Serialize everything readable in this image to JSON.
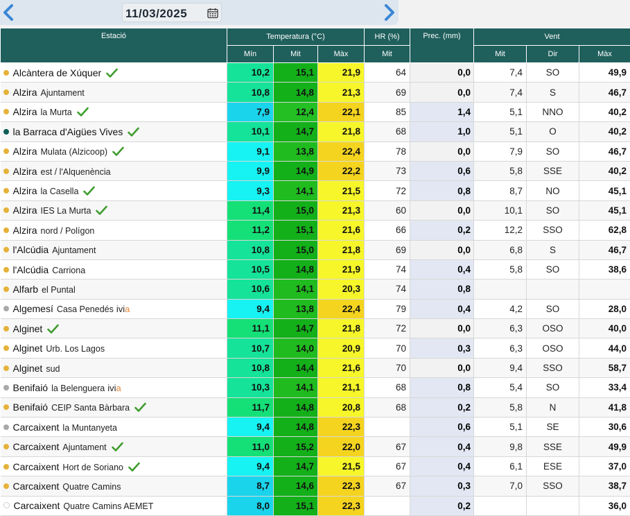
{
  "header": {
    "date": "11/03/2025"
  },
  "icons": {
    "prev": "chevron-left-icon",
    "next": "chevron-right-icon",
    "calendar": "calendar-icon",
    "valid": "checkmark-icon"
  },
  "colors": {
    "header_bg": "#1f5f5c",
    "dot_yellow": "#e5b23a",
    "dot_teal": "#0e5e56",
    "dot_grey": "#a9a9a9",
    "check": "#3e9c2d",
    "prec_bg": "#e2e7f3",
    "prec_zero_bg": "#f2f2f2"
  },
  "columns": {
    "station": "Estació",
    "temp": "Temperatura (°C)",
    "hr": "HR (%)",
    "prec": "Prec. (mm)",
    "wind": "Vent",
    "min": "Mín",
    "mit": "Mit",
    "max": "Màx",
    "hr_mit": "Mit",
    "wind_mit": "Mit",
    "wind_dir": "Dir",
    "wind_max": "Màx"
  },
  "rows": [
    {
      "name": "Alcàntera de Xúquer",
      "sub": "",
      "dot": "yellow",
      "check": true,
      "min": "10,2",
      "mit": "15,1",
      "max": "21,9",
      "hr": "64",
      "prec": "0,0",
      "w_mit": "7,4",
      "w_dir": "SO",
      "w_max": "49,9"
    },
    {
      "name": "Alzira",
      "sub": "Ajuntament",
      "dot": "yellow",
      "check": false,
      "min": "10,8",
      "mit": "14,8",
      "max": "21,3",
      "hr": "69",
      "prec": "0,0",
      "w_mit": "7,4",
      "w_dir": "S",
      "w_max": "46,7"
    },
    {
      "name": "Alzira",
      "sub": "la Murta",
      "dot": "yellow",
      "check": true,
      "min": "7,9",
      "mit": "12,4",
      "max": "22,1",
      "hr": "85",
      "prec": "1,4",
      "w_mit": "5,1",
      "w_dir": "NNO",
      "w_max": "40,2"
    },
    {
      "name": "la Barraca d'Aigües Vives",
      "sub": "",
      "dot": "teal",
      "check": true,
      "min": "10,1",
      "mit": "14,7",
      "max": "21,8",
      "hr": "68",
      "prec": "1,0",
      "w_mit": "5,1",
      "w_dir": "O",
      "w_max": "40,2"
    },
    {
      "name": "Alzira",
      "sub": "Mulata (Alzicoop)",
      "dot": "yellow",
      "check": true,
      "min": "9,1",
      "mit": "13,8",
      "max": "22,4",
      "hr": "78",
      "prec": "0,0",
      "w_mit": "7,9",
      "w_dir": "SO",
      "w_max": "46,7"
    },
    {
      "name": "Alzira",
      "sub": "est / l'Alquenència",
      "dot": "yellow",
      "check": false,
      "min": "9,9",
      "mit": "14,9",
      "max": "22,2",
      "hr": "73",
      "prec": "0,6",
      "w_mit": "5,8",
      "w_dir": "SSE",
      "w_max": "40,2"
    },
    {
      "name": "Alzira",
      "sub": "la Casella",
      "dot": "yellow",
      "check": true,
      "min": "9,3",
      "mit": "14,1",
      "max": "21,5",
      "hr": "72",
      "prec": "0,8",
      "w_mit": "8,7",
      "w_dir": "NO",
      "w_max": "45,1"
    },
    {
      "name": "Alzira",
      "sub": "IES La Murta",
      "dot": "yellow",
      "check": true,
      "min": "11,4",
      "mit": "15,0",
      "max": "21,3",
      "hr": "60",
      "prec": "0,0",
      "w_mit": "10,1",
      "w_dir": "SO",
      "w_max": "45,1"
    },
    {
      "name": "Alzira",
      "sub": "nord / Polígon",
      "dot": "yellow",
      "check": false,
      "min": "11,2",
      "mit": "15,1",
      "max": "21,6",
      "hr": "66",
      "prec": "0,2",
      "w_mit": "12,2",
      "w_dir": "SSO",
      "w_max": "62,8"
    },
    {
      "name": "l'Alcúdia",
      "sub": "Ajuntament",
      "dot": "yellow",
      "check": false,
      "min": "10,8",
      "mit": "15,0",
      "max": "21,8",
      "hr": "69",
      "prec": "0,0",
      "w_mit": "6,8",
      "w_dir": "S",
      "w_max": "46,7"
    },
    {
      "name": "l'Alcúdia",
      "sub": "Carriona",
      "dot": "yellow",
      "check": false,
      "min": "10,5",
      "mit": "14,8",
      "max": "21,9",
      "hr": "74",
      "prec": "0,4",
      "w_mit": "5,8",
      "w_dir": "SO",
      "w_max": "38,6"
    },
    {
      "name": "Alfarb",
      "sub": "el Puntal",
      "dot": "yellow",
      "check": false,
      "min": "10,6",
      "mit": "14,1",
      "max": "20,3",
      "hr": "74",
      "prec": "0,8",
      "w_mit": "",
      "w_dir": "",
      "w_max": ""
    },
    {
      "name": "Algemesí",
      "sub": "Casa Penedés",
      "dot": "grey",
      "check": false,
      "ivia": true,
      "min": "9,4",
      "mit": "13,8",
      "max": "22,4",
      "hr": "79",
      "prec": "0,4",
      "w_mit": "4,2",
      "w_dir": "SO",
      "w_max": "28,0"
    },
    {
      "name": "Alginet",
      "sub": "",
      "dot": "yellow",
      "check": true,
      "min": "11,1",
      "mit": "14,7",
      "max": "21,8",
      "hr": "72",
      "prec": "0,0",
      "w_mit": "6,3",
      "w_dir": "OSO",
      "w_max": "40,0"
    },
    {
      "name": "Alginet",
      "sub": "Urb. Los Lagos",
      "dot": "yellow",
      "check": false,
      "min": "10,7",
      "mit": "14,0",
      "max": "20,9",
      "hr": "70",
      "prec": "0,3",
      "w_mit": "6,3",
      "w_dir": "OSO",
      "w_max": "44,0"
    },
    {
      "name": "Alginet",
      "sub": "sud",
      "dot": "yellow",
      "check": false,
      "min": "10,8",
      "mit": "14,4",
      "max": "21,6",
      "hr": "70",
      "prec": "0,0",
      "w_mit": "9,4",
      "w_dir": "SSO",
      "w_max": "58,7"
    },
    {
      "name": "Benifaió",
      "sub": "la Belenguera",
      "dot": "grey",
      "check": false,
      "ivia": true,
      "min": "10,3",
      "mit": "14,1",
      "max": "21,1",
      "hr": "68",
      "prec": "0,8",
      "w_mit": "5,4",
      "w_dir": "SO",
      "w_max": "33,4"
    },
    {
      "name": "Benifaió",
      "sub": "CEIP Santa Bàrbara",
      "dot": "yellow",
      "check": true,
      "min": "11,7",
      "mit": "14,8",
      "max": "20,8",
      "hr": "68",
      "prec": "0,2",
      "w_mit": "5,8",
      "w_dir": "N",
      "w_max": "41,8"
    },
    {
      "name": "Carcaixent",
      "sub": "la Muntanyeta",
      "dot": "grey",
      "check": false,
      "min": "9,4",
      "mit": "14,8",
      "max": "22,3",
      "hr": "",
      "prec": "0,6",
      "w_mit": "5,1",
      "w_dir": "SE",
      "w_max": "30,6"
    },
    {
      "name": "Carcaixent",
      "sub": "Ajuntament",
      "dot": "yellow",
      "check": true,
      "min": "11,0",
      "mit": "15,2",
      "max": "22,0",
      "hr": "67",
      "prec": "0,4",
      "w_mit": "9,8",
      "w_dir": "SSE",
      "w_max": "49,9"
    },
    {
      "name": "Carcaixent",
      "sub": "Hort de Soriano",
      "dot": "yellow",
      "check": true,
      "min": "9,4",
      "mit": "14,7",
      "max": "21,5",
      "hr": "67",
      "prec": "0,4",
      "w_mit": "6,1",
      "w_dir": "ESE",
      "w_max": "37,0"
    },
    {
      "name": "Carcaixent",
      "sub": "Quatre Camins",
      "dot": "yellow",
      "check": false,
      "min": "8,7",
      "mit": "14,6",
      "max": "22,3",
      "hr": "67",
      "prec": "0,3",
      "w_mit": "7,0",
      "w_dir": "SSO",
      "w_max": "38,7"
    },
    {
      "name": "Carcaixent",
      "sub": "Quatre Camins AEMET",
      "dot": "white",
      "check": false,
      "min": "8,0",
      "mit": "15,1",
      "max": "22,3",
      "hr": "",
      "prec": "0,2",
      "w_mit": "",
      "w_dir": "",
      "w_max": "36,0"
    }
  ],
  "ivia_label": {
    "prefix": "ivi",
    "suffix": "a"
  }
}
